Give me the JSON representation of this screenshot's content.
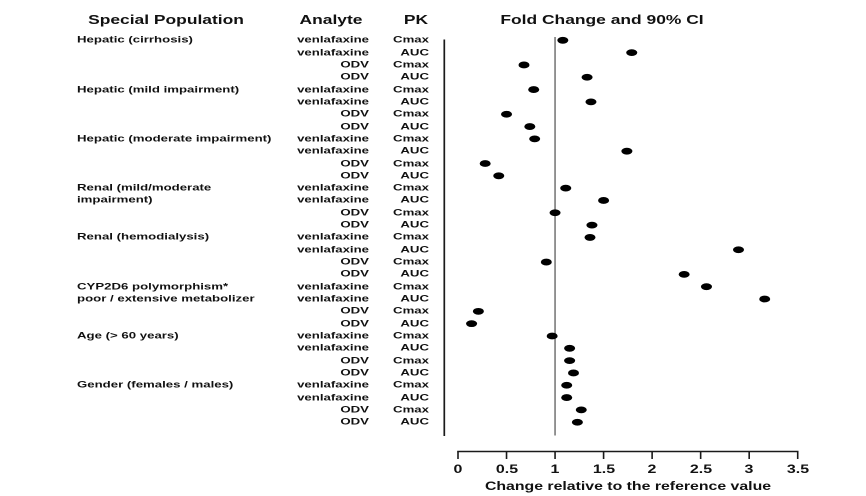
{
  "chart_data": {
    "type": "scatter",
    "subtype": "forest-dot-plot",
    "title": "Fold Change and 90% CI",
    "xlabel": "Change relative to the reference value",
    "xlim": [
      0,
      3.5
    ],
    "xticks": [
      "0",
      "0.5",
      "1",
      "1.5",
      "2",
      "2.5",
      "3",
      "3.5"
    ],
    "reference_line_x": 1,
    "grid": false,
    "legend": false,
    "columns": {
      "population": "Special Population",
      "analyte": "Analyte",
      "pk": "PK"
    },
    "groups": [
      {
        "population_lines": [
          "Hepatic (cirrhosis)"
        ],
        "rows": [
          {
            "analyte": "venlafaxine",
            "pk": "Cmax",
            "fold_change": 1.08
          },
          {
            "analyte": "venlafaxine",
            "pk": "AUC",
            "fold_change": 1.79
          },
          {
            "analyte": "ODV",
            "pk": "Cmax",
            "fold_change": 0.68
          },
          {
            "analyte": "ODV",
            "pk": "AUC",
            "fold_change": 1.33
          }
        ]
      },
      {
        "population_lines": [
          "Hepatic (mild impairment)"
        ],
        "rows": [
          {
            "analyte": "venlafaxine",
            "pk": "Cmax",
            "fold_change": 0.78
          },
          {
            "analyte": "venlafaxine",
            "pk": "AUC",
            "fold_change": 1.37
          },
          {
            "analyte": "ODV",
            "pk": "Cmax",
            "fold_change": 0.5
          },
          {
            "analyte": "ODV",
            "pk": "AUC",
            "fold_change": 0.74
          }
        ]
      },
      {
        "population_lines": [
          "Hepatic (moderate impairment)"
        ],
        "rows": [
          {
            "analyte": "venlafaxine",
            "pk": "Cmax",
            "fold_change": 0.79
          },
          {
            "analyte": "venlafaxine",
            "pk": "AUC",
            "fold_change": 1.74
          },
          {
            "analyte": "ODV",
            "pk": "Cmax",
            "fold_change": 0.28
          },
          {
            "analyte": "ODV",
            "pk": "AUC",
            "fold_change": 0.42
          }
        ]
      },
      {
        "population_lines": [
          "Renal (mild/moderate",
          "impairment)"
        ],
        "rows": [
          {
            "analyte": "venlafaxine",
            "pk": "Cmax",
            "fold_change": 1.11
          },
          {
            "analyte": "venlafaxine",
            "pk": "AUC",
            "fold_change": 1.5
          },
          {
            "analyte": "ODV",
            "pk": "Cmax",
            "fold_change": 1.0
          },
          {
            "analyte": "ODV",
            "pk": "AUC",
            "fold_change": 1.38
          }
        ]
      },
      {
        "population_lines": [
          "Renal (hemodialysis)"
        ],
        "rows": [
          {
            "analyte": "venlafaxine",
            "pk": "Cmax",
            "fold_change": 1.36
          },
          {
            "analyte": "venlafaxine",
            "pk": "AUC",
            "fold_change": 2.89
          },
          {
            "analyte": "ODV",
            "pk": "Cmax",
            "fold_change": 0.91
          },
          {
            "analyte": "ODV",
            "pk": "AUC",
            "fold_change": 2.33
          }
        ]
      },
      {
        "population_lines": [
          "CYP2D6 polymorphism*",
          "poor / extensive metabolizer"
        ],
        "rows": [
          {
            "analyte": "venlafaxine",
            "pk": "Cmax",
            "fold_change": 2.56
          },
          {
            "analyte": "venlafaxine",
            "pk": "AUC",
            "fold_change": 3.16
          },
          {
            "analyte": "ODV",
            "pk": "Cmax",
            "fold_change": 0.21
          },
          {
            "analyte": "ODV",
            "pk": "AUC",
            "fold_change": 0.14
          }
        ]
      },
      {
        "population_lines": [
          "Age (> 60 years)"
        ],
        "rows": [
          {
            "analyte": "venlafaxine",
            "pk": "Cmax",
            "fold_change": 0.97
          },
          {
            "analyte": "venlafaxine",
            "pk": "AUC",
            "fold_change": 1.15
          },
          {
            "analyte": "ODV",
            "pk": "Cmax",
            "fold_change": 1.15
          },
          {
            "analyte": "ODV",
            "pk": "AUC",
            "fold_change": 1.19
          }
        ]
      },
      {
        "population_lines": [
          "Gender (females / males)"
        ],
        "rows": [
          {
            "analyte": "venlafaxine",
            "pk": "Cmax",
            "fold_change": 1.12
          },
          {
            "analyte": "venlafaxine",
            "pk": "AUC",
            "fold_change": 1.12
          },
          {
            "analyte": "ODV",
            "pk": "Cmax",
            "fold_change": 1.27
          },
          {
            "analyte": "ODV",
            "pk": "AUC",
            "fold_change": 1.23
          }
        ]
      }
    ]
  },
  "colors": {
    "background": "#ffffff",
    "text": "#111111",
    "dot": "#000000",
    "axis_line": "#1a1a1a",
    "column_divider_line": "#1a1a1a",
    "reference_line": "#8a8a8a"
  }
}
